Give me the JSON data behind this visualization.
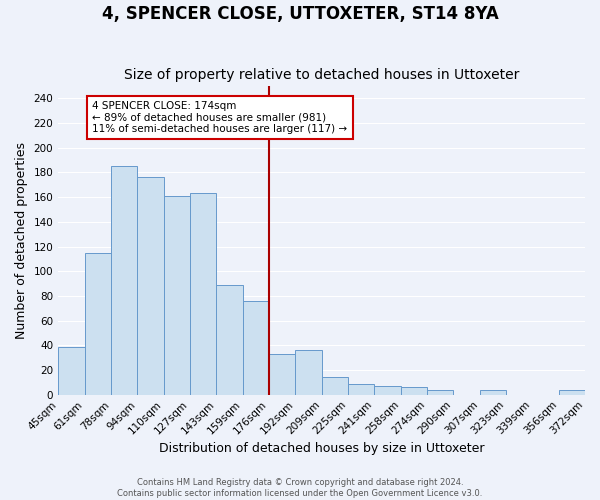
{
  "title": "4, SPENCER CLOSE, UTTOXETER, ST14 8YA",
  "subtitle": "Size of property relative to detached houses in Uttoxeter",
  "xlabel": "Distribution of detached houses by size in Uttoxeter",
  "ylabel": "Number of detached properties",
  "footer_line1": "Contains HM Land Registry data © Crown copyright and database right 2024.",
  "footer_line2": "Contains public sector information licensed under the Open Government Licence v3.0.",
  "bin_labels": [
    "45sqm",
    "61sqm",
    "78sqm",
    "94sqm",
    "110sqm",
    "127sqm",
    "143sqm",
    "159sqm",
    "176sqm",
    "192sqm",
    "209sqm",
    "225sqm",
    "241sqm",
    "258sqm",
    "274sqm",
    "290sqm",
    "307sqm",
    "323sqm",
    "339sqm",
    "356sqm",
    "372sqm"
  ],
  "bar_heights": [
    39,
    115,
    185,
    176,
    161,
    163,
    89,
    76,
    33,
    36,
    14,
    9,
    7,
    6,
    4,
    0,
    4,
    0,
    0,
    4
  ],
  "bar_color": "#cce0f0",
  "bar_edge_color": "#6699cc",
  "vline_x_index": 8,
  "vline_color": "#aa0000",
  "annotation_title": "4 SPENCER CLOSE: 174sqm",
  "annotation_line1": "← 89% of detached houses are smaller (981)",
  "annotation_line2": "11% of semi-detached houses are larger (117) →",
  "annotation_box_facecolor": "#ffffff",
  "annotation_box_edgecolor": "#cc0000",
  "ylim": [
    0,
    250
  ],
  "yticks": [
    0,
    20,
    40,
    60,
    80,
    100,
    120,
    140,
    160,
    180,
    200,
    220,
    240
  ],
  "background_color": "#eef2fa",
  "grid_color": "#ffffff",
  "title_fontsize": 12,
  "subtitle_fontsize": 10,
  "axis_label_fontsize": 9,
  "tick_fontsize": 7.5,
  "footer_fontsize": 6
}
